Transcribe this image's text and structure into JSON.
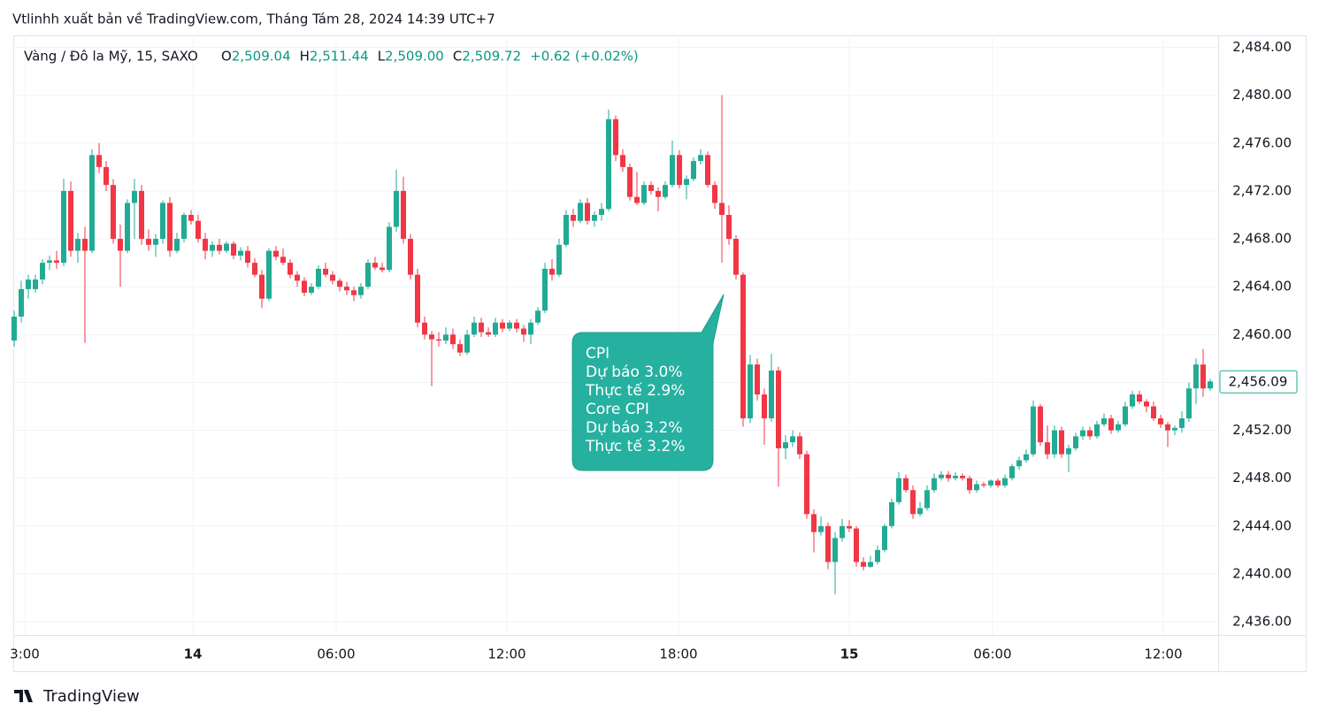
{
  "published": "Vtlinhh xuất bản về TradingView.com, Tháng Tám 28, 2024 14:39 UTC+7",
  "brand": "TradingView",
  "chart_data": {
    "type": "candlestick",
    "title": "Vàng / Đô la Mỹ, 15, SAXO",
    "legend": [
      {
        "key": "O",
        "value": "2,509.04"
      },
      {
        "key": "H",
        "value": "2,511.44"
      },
      {
        "key": "L",
        "value": "2,509.00"
      },
      {
        "key": "C",
        "value": "2,509.72"
      },
      {
        "key": "",
        "value": "+0.62 (+0.02%)"
      }
    ],
    "up_color": "#22ab94",
    "down_color": "#f23645",
    "grid": true,
    "ylim": [
      2434.9,
      2485
    ],
    "yticks": [
      {
        "value": 2436,
        "label": "2,436.00"
      },
      {
        "value": 2440,
        "label": "2,440.00"
      },
      {
        "value": 2444,
        "label": "2,444.00"
      },
      {
        "value": 2448,
        "label": "2,448.00"
      },
      {
        "value": 2452,
        "label": "2,452.00"
      },
      {
        "value": 2456,
        "label": "2,456.00"
      },
      {
        "value": 2460,
        "label": "2,460.00"
      },
      {
        "value": 2464,
        "label": "2,464.00"
      },
      {
        "value": 2468,
        "label": "2,468.00"
      },
      {
        "value": 2472,
        "label": "2,472.00"
      },
      {
        "value": 2476,
        "label": "2,476.00"
      },
      {
        "value": 2480,
        "label": "2,480.00"
      },
      {
        "value": 2484,
        "label": "2,484.00"
      }
    ],
    "xticks": [
      {
        "value": 1.5,
        "label": "3:00"
      },
      {
        "value": 25.25,
        "label": "14"
      },
      {
        "value": 45.5,
        "label": "06:00"
      },
      {
        "value": 69.625,
        "label": "12:00"
      },
      {
        "value": 93.875,
        "label": "18:00"
      },
      {
        "value": 118,
        "label": "15"
      },
      {
        "value": 138.25,
        "label": "06:00"
      },
      {
        "value": 162.375,
        "label": "12:00"
      }
    ],
    "last_price": {
      "value": 2456.09,
      "label": "2,456.09"
    },
    "annotation_lines": [
      "CPI",
      "Dự báo 3.0%",
      "Thực tế 2.9%",
      "Core CPI",
      "Dự báo 3.2%",
      "Thực tế 3.2%"
    ],
    "candles": [
      [
        2459.5,
        2462,
        2459,
        2461.5
      ],
      [
        2461.5,
        2464.5,
        2461,
        2463.8
      ],
      [
        2463.8,
        2465,
        2463,
        2464.6
      ],
      [
        2463.8,
        2465,
        2463.5,
        2464.6
      ],
      [
        2464.6,
        2466.3,
        2464.2,
        2466
      ],
      [
        2466,
        2466.6,
        2465.4,
        2466.2
      ],
      [
        2466.2,
        2467,
        2465.5,
        2466
      ],
      [
        2466,
        2473,
        2465.7,
        2472
      ],
      [
        2472,
        2472.8,
        2466.5,
        2467
      ],
      [
        2467,
        2468.5,
        2466,
        2468
      ],
      [
        2468,
        2469,
        2459.3,
        2467
      ],
      [
        2467,
        2475.5,
        2466.8,
        2475
      ],
      [
        2475,
        2476,
        2473.5,
        2474
      ],
      [
        2474,
        2474.5,
        2472,
        2472.5
      ],
      [
        2472.5,
        2473,
        2467.6,
        2468
      ],
      [
        2468,
        2469.2,
        2464,
        2467
      ],
      [
        2467,
        2471.3,
        2466.8,
        2471
      ],
      [
        2471,
        2473,
        2468,
        2472
      ],
      [
        2472,
        2472.5,
        2467.5,
        2468
      ],
      [
        2468,
        2468.8,
        2467,
        2467.5
      ],
      [
        2467.5,
        2468.4,
        2466.5,
        2468
      ],
      [
        2468,
        2471.2,
        2467.6,
        2471
      ],
      [
        2471,
        2471.5,
        2466.5,
        2467
      ],
      [
        2467,
        2468.5,
        2466.8,
        2468
      ],
      [
        2468,
        2470.2,
        2467.7,
        2470
      ],
      [
        2470,
        2470.4,
        2469.2,
        2469.5
      ],
      [
        2469.5,
        2470,
        2467.7,
        2468
      ],
      [
        2468,
        2468.5,
        2466.3,
        2467
      ],
      [
        2467,
        2467.8,
        2466.5,
        2467.5
      ],
      [
        2467.5,
        2468,
        2466.7,
        2467
      ],
      [
        2467,
        2467.8,
        2466.8,
        2467.6
      ],
      [
        2467.6,
        2467.8,
        2466.3,
        2466.6
      ],
      [
        2466.6,
        2467.3,
        2466.2,
        2467
      ],
      [
        2467,
        2467.4,
        2465.6,
        2466
      ],
      [
        2466,
        2466.4,
        2464.8,
        2465
      ],
      [
        2465,
        2465.4,
        2462.2,
        2463
      ],
      [
        2463,
        2467.2,
        2462.8,
        2467
      ],
      [
        2467,
        2467.4,
        2466.2,
        2466.5
      ],
      [
        2466.5,
        2467.2,
        2465.8,
        2466
      ],
      [
        2466,
        2466.3,
        2464.7,
        2465
      ],
      [
        2465,
        2465.3,
        2464,
        2464.5
      ],
      [
        2464.5,
        2464.8,
        2463.2,
        2463.5
      ],
      [
        2463.5,
        2464.3,
        2463.3,
        2464
      ],
      [
        2464,
        2465.8,
        2463.8,
        2465.5
      ],
      [
        2465.5,
        2466,
        2464.8,
        2465
      ],
      [
        2465,
        2465.3,
        2464.2,
        2464.5
      ],
      [
        2464.5,
        2464.7,
        2463.6,
        2464
      ],
      [
        2464,
        2464.4,
        2463.3,
        2463.7
      ],
      [
        2463.7,
        2464,
        2462.8,
        2463.3
      ],
      [
        2463.3,
        2464.3,
        2463,
        2464
      ],
      [
        2464,
        2466.3,
        2463.8,
        2466
      ],
      [
        2466,
        2466.5,
        2465.4,
        2465.6
      ],
      [
        2465.6,
        2466,
        2465.2,
        2465.4
      ],
      [
        2465.4,
        2469.4,
        2465.2,
        2469
      ],
      [
        2469,
        2473.8,
        2468.6,
        2472
      ],
      [
        2472,
        2473.2,
        2467.6,
        2468
      ],
      [
        2468,
        2468.4,
        2464.6,
        2465
      ],
      [
        2465,
        2465.5,
        2460.6,
        2461
      ],
      [
        2461,
        2461.5,
        2459.6,
        2460
      ],
      [
        2460,
        2460.3,
        2455.7,
        2459.6
      ],
      [
        2459.6,
        2460.2,
        2459,
        2459.5
      ],
      [
        2459.5,
        2460.6,
        2459.2,
        2460
      ],
      [
        2460,
        2460.5,
        2458.8,
        2459.2
      ],
      [
        2459.2,
        2459.6,
        2458.2,
        2458.5
      ],
      [
        2458.5,
        2460.4,
        2458.3,
        2460
      ],
      [
        2460,
        2461.5,
        2459.8,
        2461
      ],
      [
        2461,
        2461.4,
        2459.8,
        2460.2
      ],
      [
        2460.2,
        2460.6,
        2459.8,
        2460
      ],
      [
        2460,
        2461.4,
        2459.8,
        2461
      ],
      [
        2461,
        2461.3,
        2460.2,
        2460.5
      ],
      [
        2460.5,
        2461.2,
        2460.3,
        2461
      ],
      [
        2461,
        2461.3,
        2460.2,
        2460.5
      ],
      [
        2460.5,
        2460.8,
        2459.4,
        2460
      ],
      [
        2460,
        2461.3,
        2459.2,
        2461
      ],
      [
        2461,
        2462.3,
        2460.8,
        2462
      ],
      [
        2462,
        2466,
        2461.8,
        2465.5
      ],
      [
        2465.5,
        2466.3,
        2464.5,
        2465
      ],
      [
        2465,
        2468,
        2464.8,
        2467.5
      ],
      [
        2467.5,
        2470.4,
        2467.3,
        2470
      ],
      [
        2470,
        2470.5,
        2469,
        2469.5
      ],
      [
        2469.5,
        2471.3,
        2469.3,
        2471
      ],
      [
        2471,
        2471.4,
        2469.2,
        2469.5
      ],
      [
        2469.5,
        2470.3,
        2469,
        2470
      ],
      [
        2470,
        2471,
        2469.5,
        2470.5
      ],
      [
        2470.5,
        2478.8,
        2470.3,
        2478
      ],
      [
        2478,
        2478.3,
        2474.5,
        2475
      ],
      [
        2475,
        2475.5,
        2473.6,
        2474
      ],
      [
        2474,
        2474.3,
        2471.2,
        2471.5
      ],
      [
        2471.5,
        2473.6,
        2470.8,
        2471
      ],
      [
        2471,
        2472.8,
        2470.8,
        2472.5
      ],
      [
        2472.5,
        2472.8,
        2471.7,
        2472
      ],
      [
        2472,
        2472.3,
        2470.3,
        2471.5
      ],
      [
        2471.5,
        2472.8,
        2471.3,
        2472.5
      ],
      [
        2472.5,
        2476.2,
        2472.3,
        2475
      ],
      [
        2475,
        2475.4,
        2472.2,
        2472.5
      ],
      [
        2472.5,
        2473.3,
        2471.3,
        2473
      ],
      [
        2473,
        2474.8,
        2472.8,
        2474.5
      ],
      [
        2474.5,
        2475.5,
        2474.2,
        2475
      ],
      [
        2475,
        2475.3,
        2472.3,
        2472.5
      ],
      [
        2472.5,
        2472.8,
        2470.5,
        2471
      ],
      [
        2471,
        2480,
        2466,
        2470
      ],
      [
        2470,
        2470.8,
        2467.5,
        2468
      ],
      [
        2468,
        2468.3,
        2464.6,
        2465
      ],
      [
        2465,
        2465.2,
        2452.3,
        2453
      ],
      [
        2453,
        2458.3,
        2452.6,
        2457.5
      ],
      [
        2457.5,
        2458,
        2454.5,
        2455
      ],
      [
        2455,
        2455.5,
        2450.8,
        2453
      ],
      [
        2453,
        2458.4,
        2452.7,
        2457
      ],
      [
        2457,
        2457.3,
        2447.3,
        2450.5
      ],
      [
        2450.5,
        2451.6,
        2449.6,
        2451
      ],
      [
        2451,
        2452,
        2450.6,
        2451.5
      ],
      [
        2451.5,
        2451.8,
        2449.6,
        2450
      ],
      [
        2450,
        2450.3,
        2444.6,
        2445
      ],
      [
        2445,
        2445.4,
        2441.8,
        2443.5
      ],
      [
        2443.5,
        2444.8,
        2443.2,
        2444
      ],
      [
        2444,
        2444.3,
        2440.4,
        2441
      ],
      [
        2441,
        2443.5,
        2438.3,
        2443
      ],
      [
        2443,
        2444.6,
        2442.7,
        2444
      ],
      [
        2444,
        2444.5,
        2443.5,
        2443.8
      ],
      [
        2443.8,
        2444,
        2440.6,
        2441
      ],
      [
        2441,
        2441.4,
        2440.3,
        2440.6
      ],
      [
        2440.6,
        2441.5,
        2440.5,
        2441
      ],
      [
        2441,
        2442.4,
        2440.8,
        2442
      ],
      [
        2442,
        2444.2,
        2441.8,
        2444
      ],
      [
        2444,
        2446.3,
        2443.8,
        2446
      ],
      [
        2446,
        2448.5,
        2445.8,
        2448
      ],
      [
        2448,
        2448.3,
        2446.8,
        2447
      ],
      [
        2447,
        2447.4,
        2444.6,
        2445
      ],
      [
        2445,
        2446,
        2444.8,
        2445.5
      ],
      [
        2445.5,
        2447.4,
        2445.3,
        2447
      ],
      [
        2447,
        2448.4,
        2446.8,
        2448
      ],
      [
        2448,
        2448.6,
        2447.8,
        2448.3
      ],
      [
        2448.3,
        2448.6,
        2447.7,
        2448
      ],
      [
        2448,
        2448.5,
        2447.8,
        2448.2
      ],
      [
        2448.2,
        2448.4,
        2447.8,
        2448
      ],
      [
        2448,
        2448.2,
        2446.7,
        2447
      ],
      [
        2447,
        2447.8,
        2446.8,
        2447.5
      ],
      [
        2447.5,
        2447.7,
        2447.2,
        2447.4
      ],
      [
        2447.4,
        2447.9,
        2447.2,
        2447.8
      ],
      [
        2447.8,
        2448,
        2447.2,
        2447.4
      ],
      [
        2447.4,
        2448.3,
        2447.2,
        2448
      ],
      [
        2448,
        2449.2,
        2447.8,
        2449
      ],
      [
        2449,
        2449.8,
        2448.7,
        2449.5
      ],
      [
        2449.5,
        2450.4,
        2449.3,
        2450
      ],
      [
        2450,
        2454.5,
        2449.8,
        2454
      ],
      [
        2454,
        2454.2,
        2450.7,
        2451
      ],
      [
        2451,
        2452.4,
        2449.6,
        2450
      ],
      [
        2450,
        2452.4,
        2449.7,
        2452
      ],
      [
        2452,
        2452.3,
        2449.7,
        2450
      ],
      [
        2450,
        2450.8,
        2448.5,
        2450.5
      ],
      [
        2450.5,
        2451.8,
        2450.3,
        2451.5
      ],
      [
        2451.5,
        2452.3,
        2451.2,
        2452
      ],
      [
        2452,
        2452.3,
        2451.2,
        2451.5
      ],
      [
        2451.5,
        2452.8,
        2451.3,
        2452.5
      ],
      [
        2452.5,
        2453.4,
        2452.3,
        2453
      ],
      [
        2453,
        2453.3,
        2451.7,
        2452
      ],
      [
        2452,
        2452.8,
        2451.8,
        2452.5
      ],
      [
        2452.5,
        2454.4,
        2452.3,
        2454
      ],
      [
        2454,
        2455.3,
        2453.8,
        2455
      ],
      [
        2455,
        2455.3,
        2454.2,
        2454.4
      ],
      [
        2454.4,
        2454.6,
        2453.5,
        2454
      ],
      [
        2454,
        2454.4,
        2452.8,
        2453
      ],
      [
        2453,
        2453.3,
        2452.2,
        2452.5
      ],
      [
        2452.5,
        2452.7,
        2450.6,
        2452
      ],
      [
        2452,
        2452.4,
        2451.6,
        2452.2
      ],
      [
        2452.2,
        2453.6,
        2451.8,
        2453
      ],
      [
        2453,
        2456,
        2452.7,
        2455.5
      ],
      [
        2455.5,
        2458,
        2454.2,
        2457.5
      ],
      [
        2457.5,
        2458.8,
        2454.8,
        2455.5
      ],
      [
        2455.5,
        2456.3,
        2455.3,
        2456.09
      ]
    ]
  }
}
